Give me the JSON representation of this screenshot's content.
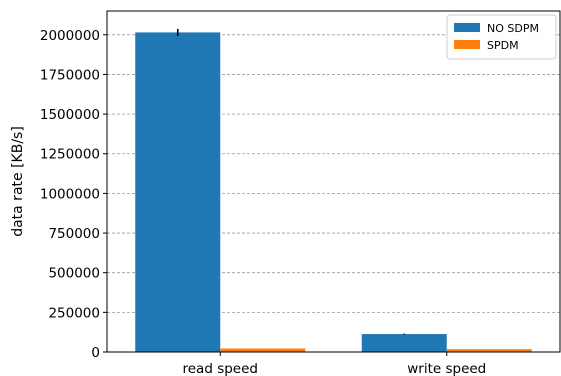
{
  "chart_data": {
    "type": "bar",
    "title": "",
    "xlabel": "",
    "ylabel": "data rate [KB/s]",
    "categories": [
      "read speed",
      "write speed"
    ],
    "series": [
      {
        "name": "NO SDPM",
        "values": [
          2015000,
          113000
        ],
        "errors": [
          22000,
          3000
        ],
        "color": "#1f77b4"
      },
      {
        "name": "SPDM",
        "values": [
          22000,
          18000
        ],
        "errors": [
          0,
          0
        ],
        "color": "#ff7f0e"
      }
    ],
    "ylim": [
      0,
      2150000
    ],
    "yticks": [
      0,
      250000,
      500000,
      750000,
      1000000,
      1250000,
      1500000,
      1750000,
      2000000
    ],
    "ytick_labels": [
      "0",
      "250000",
      "500000",
      "750000",
      "1000000",
      "1250000",
      "1500000",
      "1750000",
      "2000000"
    ],
    "grid": "horizontal dashed",
    "legend": "top-right"
  }
}
